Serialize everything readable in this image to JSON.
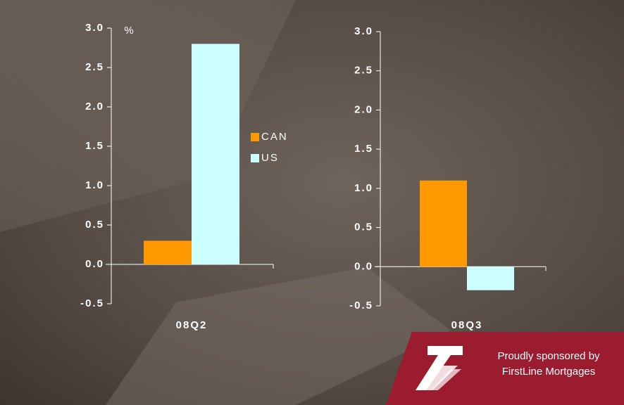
{
  "chart_data": [
    {
      "type": "bar",
      "unit": "%",
      "categories": [
        "08Q2"
      ],
      "series": [
        {
          "name": "CAN",
          "color": "#ff9900",
          "values": [
            0.3
          ]
        },
        {
          "name": "US",
          "color": "#ccffff",
          "values": [
            2.8
          ]
        }
      ],
      "ylim": [
        -0.5,
        3.0
      ],
      "yticks": [
        -0.5,
        {
          "value": 0,
          "label": "0.0"
        },
        0.5,
        {
          "value": 1,
          "label": "1.0"
        },
        1.5,
        {
          "value": 2,
          "label": "2.0"
        },
        2.5,
        {
          "value": 3,
          "label": "3.0"
        }
      ],
      "legend": true
    },
    {
      "type": "bar",
      "categories": [
        "08Q3"
      ],
      "series": [
        {
          "name": "CAN",
          "color": "#ff9900",
          "values": [
            1.1
          ]
        },
        {
          "name": "US",
          "color": "#ccffff",
          "values": [
            -0.3
          ]
        }
      ],
      "ylim": [
        -0.5,
        3.0
      ],
      "yticks": [
        -0.5,
        {
          "value": 0,
          "label": "0.0"
        },
        0.5,
        {
          "value": 1,
          "label": "1.0"
        },
        1.5,
        {
          "value": 2,
          "label": "2.0"
        },
        2.5,
        {
          "value": 3,
          "label": "3.0"
        }
      ],
      "legend": false
    }
  ],
  "sponsor": {
    "lines": [
      "Proudly sponsored by",
      "FirstLine Mortgages"
    ]
  }
}
